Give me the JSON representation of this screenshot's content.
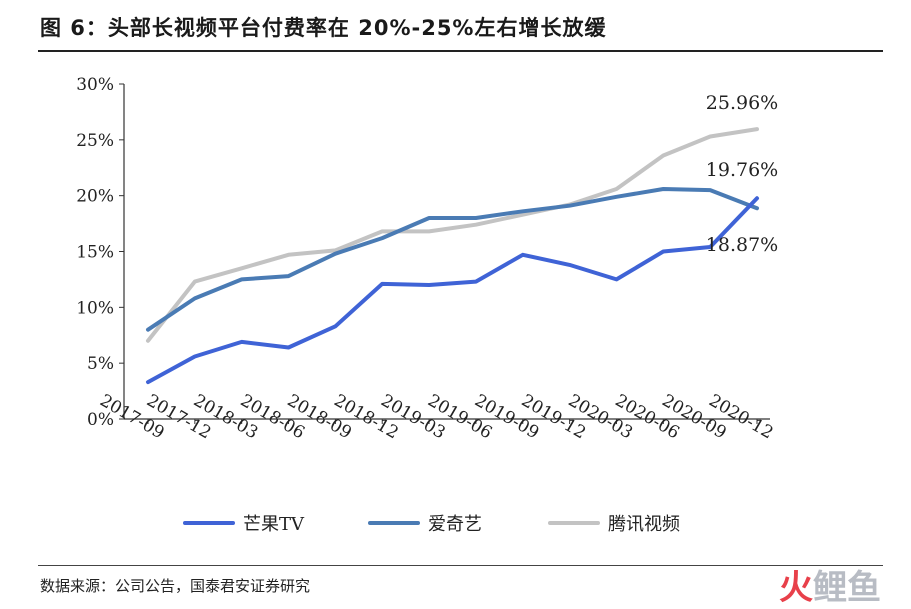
{
  "title": "图 6：头部长视频平台付费率在 20%-25%左右增长放缓",
  "source": "数据来源：公司公告，国泰君安证券研究",
  "watermark": {
    "a": "火",
    "b": "鲤鱼"
  },
  "colors": {
    "mango": "#3f63d6",
    "iqiyi": "#4a7bb4",
    "tencent": "#c3c3c3"
  },
  "chart_data": {
    "type": "line",
    "categories": [
      "2017-09",
      "2017-12",
      "2018-03",
      "2018-06",
      "2018-09",
      "2018-12",
      "2019-03",
      "2019-06",
      "2019-09",
      "2019-12",
      "2020-03",
      "2020-06",
      "2020-09",
      "2020-12"
    ],
    "ylim": [
      0,
      30
    ],
    "yticks": [
      "0%",
      "5%",
      "10%",
      "15%",
      "20%",
      "25%",
      "30%"
    ],
    "grid": false,
    "legend_position": "bottom",
    "series": [
      {
        "name": "芒果TV",
        "values": [
          3.3,
          5.6,
          6.9,
          6.4,
          8.3,
          12.1,
          12.0,
          12.3,
          14.7,
          13.8,
          12.5,
          15.0,
          15.4,
          19.76
        ]
      },
      {
        "name": "爱奇艺",
        "values": [
          8.0,
          10.8,
          12.5,
          12.8,
          14.8,
          16.2,
          18.0,
          18.0,
          18.6,
          19.1,
          19.9,
          20.6,
          20.5,
          18.87
        ]
      },
      {
        "name": "腾讯视频",
        "values": [
          7.0,
          12.3,
          13.5,
          14.7,
          15.1,
          16.8,
          16.8,
          17.4,
          18.3,
          19.2,
          20.6,
          23.6,
          25.3,
          25.96
        ]
      }
    ],
    "annotations": [
      "25.96%",
      "19.76%",
      "18.87%"
    ]
  }
}
